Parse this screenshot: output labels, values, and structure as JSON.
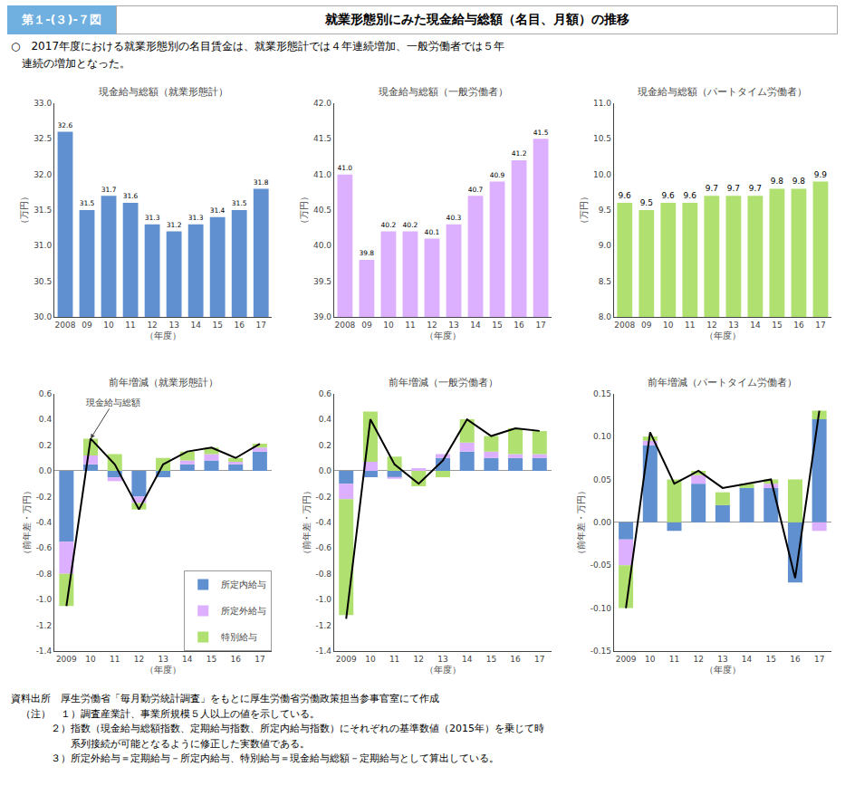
{
  "title": "就業形態別にみた現金給与総額（名目、月額）の推移",
  "subtitle": "○　2017年度における就業形態別の名目賃金は、就業形態計では４年連続増加、一般労働者では５年\n　連続の増加となった。",
  "annotations": [
    "第１-(３)-７図"
  ],
  "notes": [
    "資料出所　厚生労働省「毎月勤労統計調査」をもとに厚生労働省労働政策担当参事官室にて作成",
    "　（注）　１）調査産業計、事業所規模５人以上の値を示している。",
    "　　　　２）指数（現金給与総額指数、定期給与指数、所定内給与指数）にそれぞれの基準数値（2015年）を乗じて時",
    "　　　　　　系列接続が可能となるように修正した実数値である。",
    "　　　　３）所定外給与＝定期給与－所定内給与、特別給与＝現金給与総額－定期給与として算出している。"
  ],
  "chart_data": [
    {
      "type": "bar",
      "title": "現金給与総額（就業形態計）",
      "xlabel": "（年度）",
      "ylabel": "（万円）",
      "categories": [
        "2008",
        "09",
        "10",
        "11",
        "12",
        "13",
        "14",
        "15",
        "16",
        "17"
      ],
      "values": [
        32.6,
        31.5,
        31.7,
        31.6,
        31.3,
        31.2,
        31.3,
        31.4,
        31.5,
        31.8
      ],
      "value_labels": [
        "32.6",
        "31.5",
        "31.7",
        "31.6",
        "31.3",
        "31.2",
        "31.3",
        "31.4",
        "31.5",
        "31.8"
      ],
      "data_labels": true,
      "color": "#6090D0",
      "ylim": [
        30.0,
        33.0
      ],
      "yticks": [
        {
          "value": 30,
          "label": "30.0"
        },
        30.5,
        {
          "value": 31,
          "label": "31.0"
        },
        31.5,
        {
          "value": 32,
          "label": "32.0"
        },
        32.5,
        {
          "value": 33,
          "label": "33.0"
        }
      ],
      "grid": false
    },
    {
      "type": "bar",
      "title": "現金給与総額（一般労働者）",
      "xlabel": "（年度）",
      "ylabel": "（万円）",
      "categories": [
        "2008",
        "09",
        "10",
        "11",
        "12",
        "13",
        "14",
        "15",
        "16",
        "17"
      ],
      "values": [
        41.0,
        39.8,
        40.2,
        40.2,
        40.1,
        40.3,
        40.7,
        40.9,
        41.2,
        41.5
      ],
      "value_labels": [
        "41.0",
        "39.8",
        "40.2",
        "40.2",
        "40.1",
        "40.3",
        "40.7",
        "40.9",
        "41.2",
        "41.5"
      ],
      "data_labels": true,
      "color": "#DDB0FF",
      "ylim": [
        39.0,
        42.0
      ],
      "yticks": [
        {
          "value": 39,
          "label": "39.0"
        },
        39.5,
        {
          "value": 40,
          "label": "40.0"
        },
        40.5,
        {
          "value": 41,
          "label": "41.0"
        },
        41.5,
        {
          "value": 42,
          "label": "42.0"
        }
      ],
      "grid": false
    },
    {
      "type": "bar",
      "title": "現金給与総額（パートタイム労働者）",
      "xlabel": "（年度）",
      "ylabel": "（万円）",
      "categories": [
        "2008",
        "09",
        "10",
        "11",
        "12",
        "13",
        "14",
        "15",
        "16",
        "17"
      ],
      "values": [
        9.6,
        9.5,
        9.6,
        9.6,
        9.7,
        9.7,
        9.7,
        9.8,
        9.8,
        9.9
      ],
      "value_labels": [
        "9.6",
        "9.5",
        "9.6",
        "9.6",
        "9.7",
        "9.7",
        "9.7",
        "9.8",
        "9.8",
        "9.9"
      ],
      "data_labels": true,
      "color": "#B0E070",
      "ylim": [
        8.0,
        11.0
      ],
      "yticks": [
        {
          "value": 8,
          "label": "8.0"
        },
        8.5,
        {
          "value": 9,
          "label": "9.0"
        },
        9.5,
        {
          "value": 10,
          "label": "10.0"
        },
        10.5,
        {
          "value": 11,
          "label": "11.0"
        }
      ],
      "grid": false
    },
    {
      "type": "bar",
      "stacked": true,
      "title": "前年増減（就業形態計）",
      "xlabel": "（年度）",
      "ylabel": "（前年差・万円）",
      "categories": [
        "2009",
        "10",
        "11",
        "12",
        "13",
        "14",
        "15",
        "16",
        "17"
      ],
      "series": [
        {
          "name": "所定内給与",
          "color": "#6090D0",
          "values": [
            -0.55,
            0.05,
            -0.05,
            -0.2,
            -0.05,
            0.05,
            0.08,
            0.05,
            0.15
          ]
        },
        {
          "name": "所定外給与",
          "color": "#DDB0FF",
          "values": [
            -0.25,
            0.07,
            -0.03,
            -0.05,
            0.0,
            0.03,
            0.05,
            0.02,
            0.03
          ]
        },
        {
          "name": "特別給与",
          "color": "#B0E070",
          "values": [
            -0.25,
            0.13,
            0.13,
            -0.05,
            0.1,
            0.07,
            0.05,
            0.03,
            0.03
          ]
        },
        {
          "type": "line",
          "color": "#000000",
          "values": [
            -1.05,
            0.25,
            0.05,
            -0.3,
            0.05,
            0.15,
            0.18,
            0.1,
            0.21
          ]
        }
      ],
      "ylim": [
        -1.4,
        0.6
      ],
      "yticks": [
        -1.4,
        -1.2,
        {
          "value": -1.0,
          "label": "-1.0"
        },
        -0.8,
        -0.6,
        -0.4,
        -0.2,
        {
          "value": 0,
          "label": "0.0"
        },
        0.2,
        0.4,
        0.6
      ],
      "grid": false,
      "legend": "lower right",
      "annotations": [
        {
          "text": "現金給与総額",
          "x": "10"
        }
      ]
    },
    {
      "type": "bar",
      "stacked": true,
      "title": "前年増減（一般労働者）",
      "xlabel": "（年度）",
      "ylabel": "（前年差・万円）",
      "categories": [
        "2009",
        "10",
        "11",
        "12",
        "13",
        "14",
        "15",
        "16",
        "17"
      ],
      "series": [
        {
          "name": "所定内給与",
          "color": "#6090D0",
          "values": [
            -0.1,
            -0.05,
            -0.05,
            0.0,
            0.1,
            0.15,
            0.1,
            0.1,
            0.1
          ]
        },
        {
          "name": "所定外給与",
          "color": "#DDB0FF",
          "values": [
            -0.12,
            0.07,
            -0.01,
            0.02,
            0.03,
            0.07,
            0.05,
            0.03,
            0.03
          ]
        },
        {
          "name": "特別給与",
          "color": "#B0E070",
          "values": [
            -0.9,
            0.39,
            0.11,
            -0.12,
            -0.05,
            0.18,
            0.12,
            0.2,
            0.18
          ]
        },
        {
          "type": "line",
          "color": "#000000",
          "values": [
            -1.15,
            0.4,
            0.05,
            -0.1,
            0.08,
            0.4,
            0.27,
            0.33,
            0.31
          ]
        }
      ],
      "ylim": [
        -1.4,
        0.6
      ],
      "yticks": [
        -1.4,
        -1.2,
        {
          "value": -1.0,
          "label": "-1.0"
        },
        -0.8,
        -0.6,
        -0.4,
        -0.2,
        {
          "value": 0,
          "label": "0.0"
        },
        0.2,
        0.4,
        0.6
      ],
      "grid": false,
      "legend": false
    },
    {
      "type": "bar",
      "stacked": true,
      "title": "前年増減（パートタイム労働者）",
      "xlabel": "（年度）",
      "ylabel": "（前年差・万円）",
      "categories": [
        "2009",
        "10",
        "11",
        "12",
        "13",
        "14",
        "15",
        "16",
        "17"
      ],
      "series": [
        {
          "name": "所定内給与",
          "color": "#6090D0",
          "values": [
            -0.02,
            0.09,
            -0.01,
            0.045,
            0.02,
            0.04,
            0.04,
            -0.07,
            0.12
          ]
        },
        {
          "name": "所定外給与",
          "color": "#DDB0FF",
          "values": [
            -0.03,
            0.005,
            0.0,
            0.01,
            0.0,
            0.0,
            0.005,
            0.0,
            -0.01
          ]
        },
        {
          "name": "特別給与",
          "color": "#B0E070",
          "values": [
            -0.05,
            0.005,
            0.05,
            0.005,
            0.015,
            0.005,
            0.005,
            0.05,
            0.01
          ]
        },
        {
          "type": "line",
          "color": "#000000",
          "values": [
            -0.1,
            0.105,
            0.045,
            0.06,
            0.04,
            0.045,
            0.05,
            -0.065,
            0.13
          ]
        }
      ],
      "ylim": [
        -0.15,
        0.15
      ],
      "yticks": [
        -0.15,
        {
          "value": -0.1,
          "label": "-0.10"
        },
        -0.05,
        {
          "value": 0,
          "label": "0.00"
        },
        0.05,
        {
          "value": 0.1,
          "label": "0.10"
        },
        0.15
      ],
      "grid": false,
      "legend": false
    }
  ]
}
